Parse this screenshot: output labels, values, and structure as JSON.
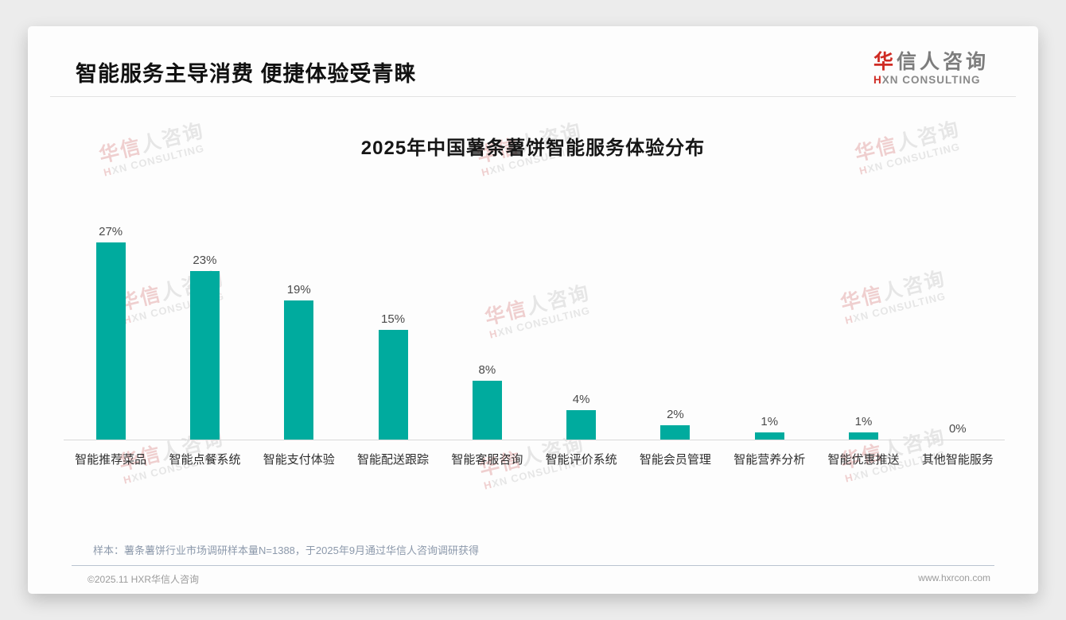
{
  "page": {
    "title": "智能服务主导消费 便捷体验受青睐"
  },
  "logo": {
    "name_red": "华",
    "name_rest": "信人咨询",
    "sub_red": "H",
    "sub_rest": "XN CONSULTING"
  },
  "watermark": {
    "line1_red": "华信",
    "line1_rest": "人咨询",
    "line2_red": "H",
    "line2_rest": "XN CONSULTING"
  },
  "chart_data": {
    "type": "bar",
    "title": "2025年中国薯条薯饼智能服务体验分布",
    "categories": [
      "智能推荐菜品",
      "智能点餐系统",
      "智能支付体验",
      "智能配送跟踪",
      "智能客服咨询",
      "智能评价系统",
      "智能会员管理",
      "智能营养分析",
      "智能优惠推送",
      "其他智能服务"
    ],
    "values": [
      27,
      23,
      19,
      15,
      8,
      4,
      2,
      1,
      1,
      0
    ],
    "value_suffix": "%",
    "bar_color": "#00ab9e",
    "xlabel": "",
    "ylabel": "",
    "ylim": [
      0,
      30
    ],
    "grid": false,
    "legend": false,
    "data_labels": "above bars, e.g. 27%"
  },
  "footer": {
    "note": "样本：薯条薯饼行业市场调研样本量N=1388，于2025年9月通过华信人咨询调研获得",
    "copyright": "©2025.11 HXR华信人咨询",
    "website": "www.hxrcon.com"
  }
}
